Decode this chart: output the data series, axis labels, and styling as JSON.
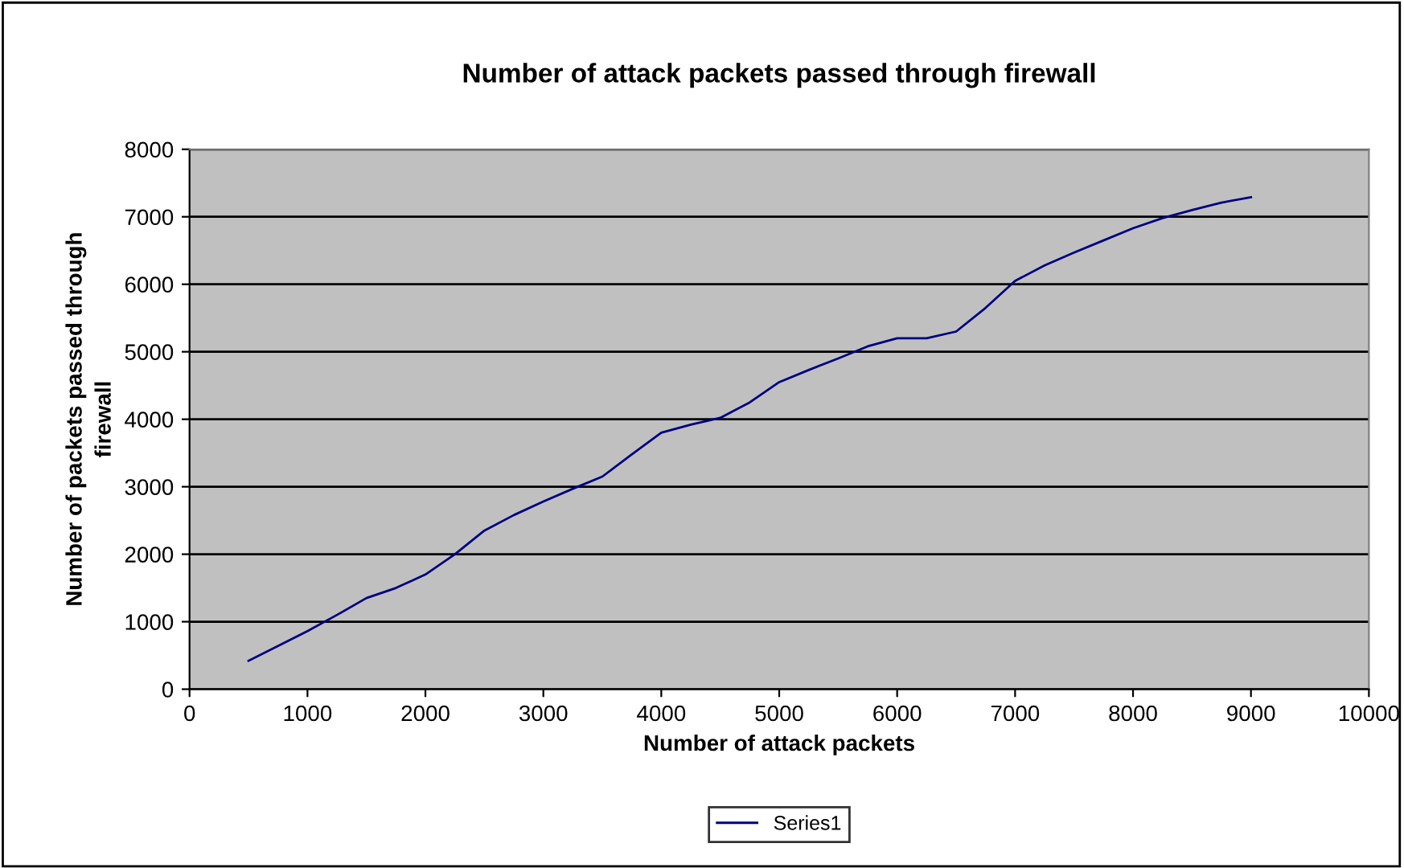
{
  "chart_data": {
    "type": "line",
    "title": "Number of attack packets passed through firewall",
    "xlabel": "Number of attack packets",
    "ylabel": "Number of packets passed through\nfirewall",
    "x": [
      500,
      750,
      1000,
      1250,
      1500,
      1750,
      2000,
      2250,
      2500,
      2750,
      3000,
      3250,
      3500,
      3750,
      4000,
      4250,
      4500,
      4750,
      5000,
      5250,
      5500,
      5750,
      6000,
      6250,
      6500,
      6750,
      7000,
      7250,
      7500,
      7750,
      8000,
      8250,
      8500,
      8750,
      9000
    ],
    "series": [
      {
        "name": "Series1",
        "color": "#000080",
        "values": [
          420,
          640,
          860,
          1100,
          1350,
          1500,
          1700,
          2000,
          2350,
          2580,
          2780,
          2970,
          3150,
          3480,
          3800,
          3920,
          4020,
          4250,
          4550,
          4730,
          4900,
          5080,
          5200,
          5200,
          5300,
          5650,
          6050,
          6280,
          6470,
          6650,
          6830,
          6980,
          7100,
          7210,
          7290
        ]
      }
    ],
    "xlim": [
      0,
      10000
    ],
    "xticks": [
      0,
      1000,
      2000,
      3000,
      4000,
      5000,
      6000,
      7000,
      8000,
      9000,
      10000
    ],
    "ylim": [
      0,
      8000
    ],
    "yticks": [
      0,
      1000,
      2000,
      3000,
      4000,
      5000,
      6000,
      7000,
      8000
    ],
    "grid": "y",
    "legend": "bottom",
    "marker": "none",
    "line_style": "solid"
  }
}
